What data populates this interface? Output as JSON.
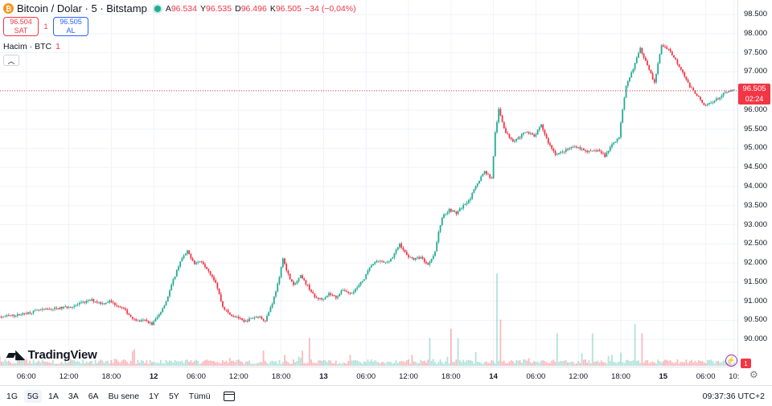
{
  "legend": {
    "symbol_title": "Bitcoin / Dolar · 5 · Bitstamp",
    "open_label": "A",
    "open_value": "96.534",
    "high_label": "Y",
    "high_value": "96.535",
    "low_label": "D",
    "low_value": "96.496",
    "close_label": "K",
    "close_value": "96.505",
    "change": "−34 (−0,04%)"
  },
  "trade": {
    "sell_price": "96.504",
    "sell_label": "SAT",
    "spread": "1",
    "buy_price": "96.505",
    "buy_label": "AL"
  },
  "volume_legend": {
    "label": "Hacim · BTC",
    "value": "1"
  },
  "collapse_icon": "chevron-up-icon",
  "price_tag": {
    "price": "96.505",
    "countdown": "02:24"
  },
  "logo_text": "TradingView",
  "alert_badge": "1",
  "range_buttons": [
    "1G",
    "5G",
    "1A",
    "3A",
    "6A",
    "Bu sene",
    "1Y",
    "5Y",
    "Tümü"
  ],
  "active_range": "5G",
  "clock": "09:37:36 UTC+2",
  "colors": {
    "up": "#22ab94",
    "down": "#f23645",
    "accent": "#2962ff"
  },
  "chart_data": {
    "type": "candlestick",
    "ylim": [
      89500,
      98500
    ],
    "y_ticks": [
      {
        "value": 90000,
        "label": "90.000"
      },
      {
        "value": 90500,
        "label": "90.500"
      },
      {
        "value": 91000,
        "label": "91.000"
      },
      {
        "value": 91500,
        "label": "91.500"
      },
      {
        "value": 92000,
        "label": "92.000"
      },
      {
        "value": 92500,
        "label": "92.500"
      },
      {
        "value": 93000,
        "label": "93.000"
      },
      {
        "value": 93500,
        "label": "93.500"
      },
      {
        "value": 94000,
        "label": "94.000"
      },
      {
        "value": 94500,
        "label": "94.500"
      },
      {
        "value": 95000,
        "label": "95.000"
      },
      {
        "value": 95500,
        "label": "95.500"
      },
      {
        "value": 96000,
        "label": "96.000"
      },
      {
        "value": 96500,
        "label": "96.500"
      },
      {
        "value": 97000,
        "label": "97.000"
      },
      {
        "value": 97500,
        "label": "97.500"
      },
      {
        "value": 98000,
        "label": "98.000"
      },
      {
        "value": 98500,
        "label": "98.500"
      }
    ],
    "x_ticks": [
      {
        "label": "06:00",
        "hours": 6,
        "bold": false
      },
      {
        "label": "12:00",
        "hours": 12,
        "bold": false
      },
      {
        "label": "18:00",
        "hours": 18,
        "bold": false
      },
      {
        "label": "12",
        "hours": 24,
        "bold": true
      },
      {
        "label": "06:00",
        "hours": 30,
        "bold": false
      },
      {
        "label": "12:00",
        "hours": 36,
        "bold": false
      },
      {
        "label": "18:00",
        "hours": 42,
        "bold": false
      },
      {
        "label": "13",
        "hours": 48,
        "bold": true
      },
      {
        "label": "06:00",
        "hours": 54,
        "bold": false
      },
      {
        "label": "12:00",
        "hours": 60,
        "bold": false
      },
      {
        "label": "18:00",
        "hours": 66,
        "bold": false
      },
      {
        "label": "14",
        "hours": 72,
        "bold": true
      },
      {
        "label": "06:00",
        "hours": 78,
        "bold": false
      },
      {
        "label": "12:00",
        "hours": 84,
        "bold": false
      },
      {
        "label": "18:00",
        "hours": 90,
        "bold": false
      },
      {
        "label": "15",
        "hours": 96,
        "bold": true
      },
      {
        "label": "06:00",
        "hours": 102,
        "bold": false
      },
      {
        "label": "10:",
        "hours": 106,
        "bold": false
      }
    ],
    "current_price": 96505,
    "price_path": [
      [
        0,
        90500
      ],
      [
        2,
        90580
      ],
      [
        5,
        90640
      ],
      [
        8,
        90760
      ],
      [
        11,
        90820
      ],
      [
        13,
        90880
      ],
      [
        14.5,
        90980
      ],
      [
        15.5,
        91030
      ],
      [
        17,
        90940
      ],
      [
        18,
        91000
      ],
      [
        20,
        90800
      ],
      [
        21,
        90600
      ],
      [
        22,
        90480
      ],
      [
        23,
        90500
      ],
      [
        24,
        90400
      ],
      [
        25,
        90650
      ],
      [
        26,
        91000
      ],
      [
        27,
        91550
      ],
      [
        28,
        92050
      ],
      [
        29,
        92300
      ],
      [
        30,
        92000
      ],
      [
        31,
        92050
      ],
      [
        32,
        91800
      ],
      [
        33,
        91500
      ],
      [
        34,
        90850
      ],
      [
        35,
        90650
      ],
      [
        36,
        90600
      ],
      [
        37,
        90450
      ],
      [
        38,
        90550
      ],
      [
        39,
        90600
      ],
      [
        40,
        90500
      ],
      [
        41,
        90950
      ],
      [
        42,
        91600
      ],
      [
        42.5,
        92150
      ],
      [
        43,
        91800
      ],
      [
        44,
        91400
      ],
      [
        45,
        91650
      ],
      [
        46,
        91400
      ],
      [
        47,
        91100
      ],
      [
        48,
        91050
      ],
      [
        49,
        91200
      ],
      [
        50,
        91100
      ],
      [
        51,
        91300
      ],
      [
        52,
        91200
      ],
      [
        53,
        91350
      ],
      [
        54,
        91600
      ],
      [
        55,
        91950
      ],
      [
        56,
        92050
      ],
      [
        57,
        92000
      ],
      [
        58,
        92150
      ],
      [
        59,
        92500
      ],
      [
        60,
        92200
      ],
      [
        61,
        92100
      ],
      [
        62,
        92150
      ],
      [
        63,
        91950
      ],
      [
        64,
        92300
      ],
      [
        64.5,
        92800
      ],
      [
        65,
        93200
      ],
      [
        66,
        93400
      ],
      [
        67,
        93300
      ],
      [
        68,
        93500
      ],
      [
        69,
        93700
      ],
      [
        70,
        94100
      ],
      [
        71,
        94400
      ],
      [
        72,
        94200
      ],
      [
        72.5,
        95400
      ],
      [
        73,
        96000
      ],
      [
        74,
        95400
      ],
      [
        75,
        95200
      ],
      [
        76,
        95300
      ],
      [
        77,
        95450
      ],
      [
        78,
        95300
      ],
      [
        79,
        95600
      ],
      [
        80,
        95150
      ],
      [
        81,
        94850
      ],
      [
        82,
        94900
      ],
      [
        83,
        95000
      ],
      [
        84,
        95050
      ],
      [
        85,
        94950
      ],
      [
        86,
        94900
      ],
      [
        87,
        94950
      ],
      [
        88,
        94800
      ],
      [
        89,
        95100
      ],
      [
        90,
        95300
      ],
      [
        90.5,
        96000
      ],
      [
        91,
        96600
      ],
      [
        92,
        97100
      ],
      [
        93,
        97600
      ],
      [
        94,
        97200
      ],
      [
        95,
        96700
      ],
      [
        96,
        97700
      ],
      [
        97,
        97600
      ],
      [
        98,
        97300
      ],
      [
        99,
        97000
      ],
      [
        100,
        96600
      ],
      [
        101,
        96400
      ],
      [
        102,
        96100
      ],
      [
        103,
        96200
      ],
      [
        104,
        96300
      ],
      [
        105,
        96450
      ],
      [
        106,
        96505
      ]
    ],
    "volume_spikes": [
      [
        46,
        0.3
      ],
      [
        63,
        0.3
      ],
      [
        66,
        0.4
      ],
      [
        67,
        0.3
      ],
      [
        72.5,
        1.0
      ],
      [
        73,
        0.5
      ],
      [
        81,
        0.35
      ],
      [
        86,
        0.35
      ],
      [
        92,
        0.45
      ],
      [
        93,
        0.35
      ]
    ]
  }
}
